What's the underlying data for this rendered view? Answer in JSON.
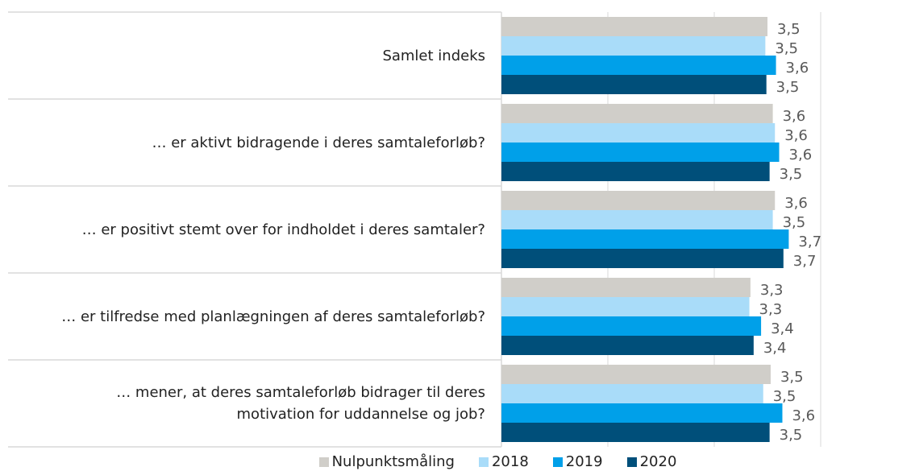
{
  "chart_data": {
    "type": "bar",
    "orientation": "horizontal",
    "categories": [
      "Samlet indeks",
      "… er aktivt bidragende i deres samtaleforløb?",
      "… er positivt stemt over for indholdet i deres samtaler?",
      "… er tilfredse med planlægningen af deres samtaleforløb?",
      "… mener, at deres samtaleforløb bidrager til deres motivation for uddannelse og job?"
    ],
    "series": [
      {
        "name": "Nulpunktsmåling",
        "color": "#d0cec9",
        "values": [
          3.5,
          3.55,
          3.57,
          3.34,
          3.53
        ],
        "value_labels": [
          "3,5",
          "3,6",
          "3,6",
          "3,3",
          "3,5"
        ]
      },
      {
        "name": "2018",
        "color": "#a9dcf9",
        "values": [
          3.48,
          3.57,
          3.55,
          3.33,
          3.46
        ],
        "value_labels": [
          "3,5",
          "3,6",
          "3,5",
          "3,3",
          "3,5"
        ]
      },
      {
        "name": "2019",
        "color": "#00a0e9",
        "values": [
          3.58,
          3.61,
          3.7,
          3.44,
          3.64
        ],
        "value_labels": [
          "3,6",
          "3,6",
          "3,7",
          "3,4",
          "3,6"
        ]
      },
      {
        "name": "2020",
        "color": "#004f7a",
        "values": [
          3.49,
          3.52,
          3.65,
          3.37,
          3.52
        ],
        "value_labels": [
          "3,5",
          "3,5",
          "3,7",
          "3,4",
          "3,5"
        ]
      }
    ],
    "xlim": [
      1,
      4
    ],
    "xticks": [
      2,
      3,
      4
    ],
    "grid": true,
    "legend": "bottom"
  }
}
